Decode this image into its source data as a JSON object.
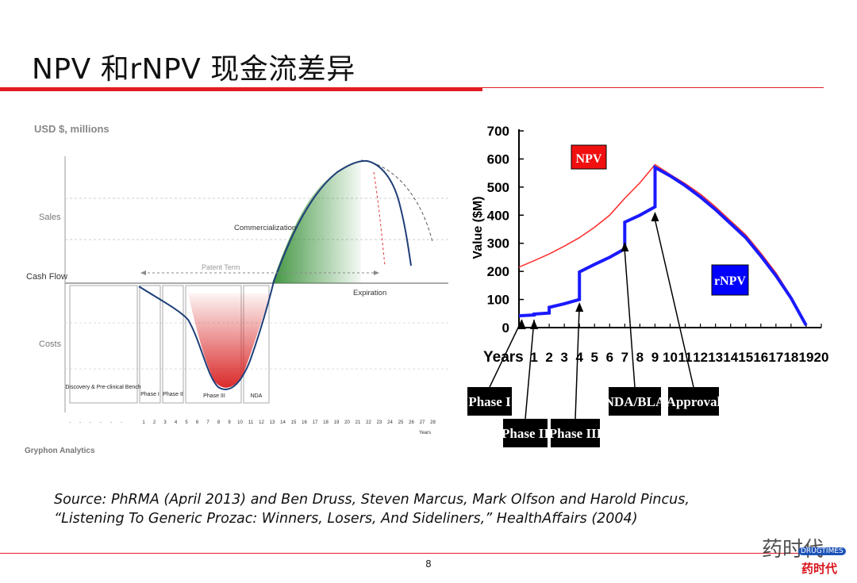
{
  "slide": {
    "title": "NPV 和rNPV 现金流差异",
    "source_line1": "Source:  PhRMA (April 2013) and Ben Druss, Steven Marcus, Mark Olfson and Harold Pincus,",
    "source_line2": "“Listening To Generic Prozac: Winners, Losers, And Sideliners,” HealthAffairs (2004)",
    "page_number": "8",
    "watermark_text": "药时代",
    "watermark_badge": "DRUGTIMES",
    "watermark_red": "药时代",
    "accent_color": "#e21d24"
  },
  "left_figure": {
    "ylabel_top": "USD $, millions",
    "y_regions": [
      "Sales",
      "Cash Flow",
      "Costs"
    ],
    "annotations": {
      "patent_term": "Patent Term",
      "commercialization": "Commercialization",
      "expiration": "Expiration"
    },
    "phase_boxes": [
      "Discovery & Pre-clinical Bench",
      "Phase I",
      "Phase II",
      "Phase III",
      "NDA"
    ],
    "x_ticks": [
      "1",
      "2",
      "3",
      "4",
      "5",
      "6",
      "7",
      "8",
      "9",
      "10",
      "11",
      "12",
      "13",
      "14",
      "15",
      "16",
      "17",
      "18",
      "19",
      "20",
      "21",
      "22",
      "23",
      "24",
      "25",
      "26",
      "27",
      "28"
    ],
    "x_unit": "Years",
    "credit": "Gryphon Analytics"
  },
  "chart_data": {
    "type": "line",
    "ylabel": "Value ($M)",
    "xlabel": "Years",
    "ylim": [
      0,
      700
    ],
    "xlim": [
      0,
      20
    ],
    "y_ticks": [
      0,
      100,
      200,
      300,
      400,
      500,
      600,
      700
    ],
    "x_ticks": [
      1,
      2,
      3,
      4,
      5,
      6,
      7,
      8,
      9,
      10,
      11,
      12,
      13,
      14,
      15,
      16,
      17,
      18,
      19,
      20
    ],
    "series": [
      {
        "name": "NPV",
        "color": "#ff3030",
        "x": [
          0,
          1,
          2,
          3,
          4,
          5,
          6,
          7,
          8,
          9,
          10,
          11,
          12,
          13,
          14,
          15,
          16,
          17,
          18,
          19
        ],
        "y": [
          215,
          238,
          262,
          290,
          320,
          357,
          400,
          460,
          515,
          580,
          545,
          512,
          475,
          430,
          380,
          330,
          265,
          195,
          110,
          10
        ]
      },
      {
        "name": "rNPV",
        "color": "#1a1aff",
        "x": [
          0,
          1,
          1,
          2,
          2,
          3,
          4,
          4,
          5,
          6,
          7,
          7,
          8,
          9,
          9,
          10,
          11,
          12,
          13,
          14,
          15,
          16,
          17,
          18,
          19
        ],
        "y": [
          42,
          45,
          48,
          52,
          72,
          85,
          100,
          198,
          225,
          250,
          280,
          375,
          400,
          430,
          570,
          540,
          505,
          465,
          420,
          370,
          320,
          255,
          185,
          105,
          8
        ]
      }
    ],
    "legend_labels": {
      "npv": "NPV",
      "rnpv": "rNPV"
    },
    "stage_markers": [
      {
        "label": "Phase I",
        "x": 0.2
      },
      {
        "label": "Phase II",
        "x": 1
      },
      {
        "label": "Phase III",
        "x": 4
      },
      {
        "label": "NDA/BLA",
        "x": 7
      },
      {
        "label": "Approval",
        "x": 9
      }
    ]
  }
}
